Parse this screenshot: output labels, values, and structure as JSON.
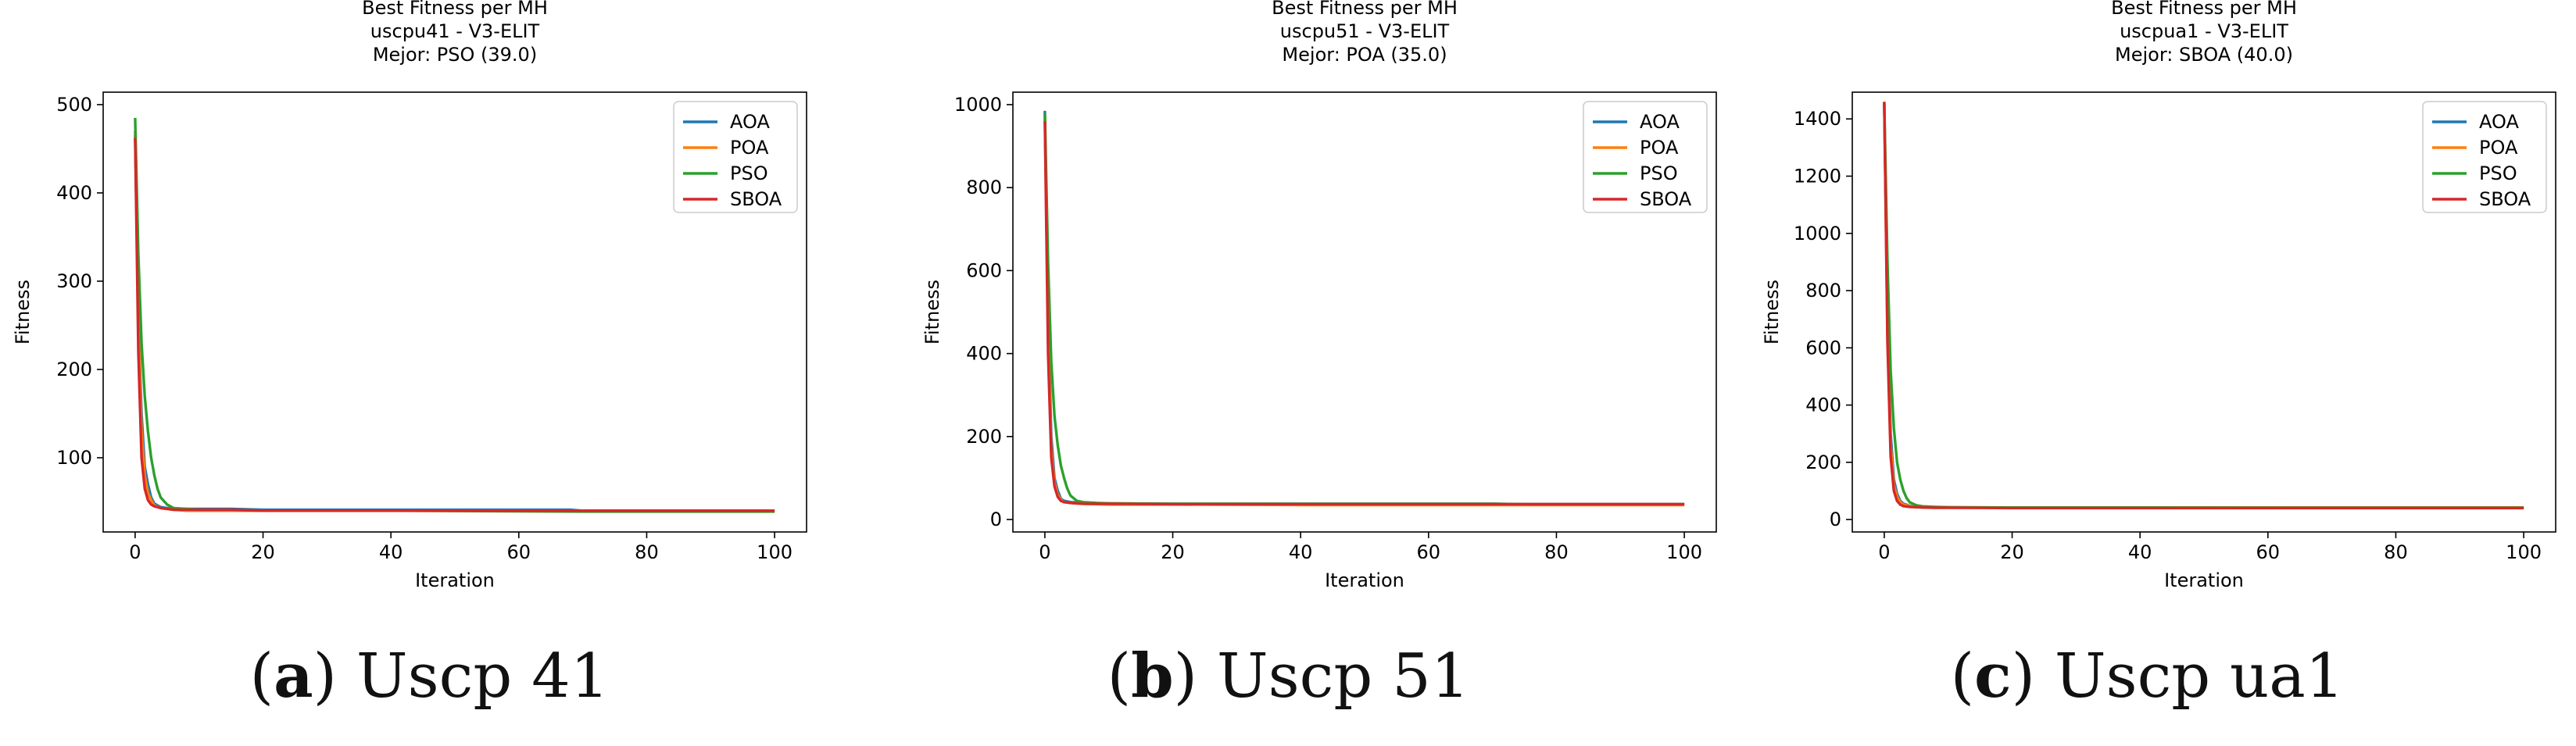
{
  "colors": {
    "AOA": "#1f77b4",
    "POA": "#ff7f0e",
    "PSO": "#2ca02c",
    "SBOA": "#d62728"
  },
  "legend_placement": "top-right",
  "chart_data": [
    {
      "type": "line",
      "title": [
        "Best Fitness per MH",
        "uscpu41 - V3-ELIT",
        "Mejor: PSO (39.0)"
      ],
      "xlabel": "Iteration",
      "ylabel": "Fitness",
      "xlim": [
        0,
        100
      ],
      "ylim": [
        30,
        500
      ],
      "xticks": [
        0,
        20,
        40,
        60,
        80,
        100
      ],
      "yticks": [
        100,
        200,
        300,
        400,
        500
      ],
      "grid": false,
      "series": [
        {
          "name": "AOA",
          "x": [
            0,
            0.5,
            1,
            1.5,
            2,
            2.5,
            3,
            4,
            5,
            6,
            8,
            10,
            15,
            20,
            40,
            68,
            70,
            100
          ],
          "y": [
            465,
            260,
            150,
            90,
            70,
            55,
            48,
            44,
            43,
            42,
            42,
            42,
            42,
            41,
            41,
            41,
            40,
            40
          ]
        },
        {
          "name": "POA",
          "x": [
            0,
            0.5,
            1,
            1.5,
            2,
            2.5,
            3,
            4,
            5,
            6,
            8,
            10,
            15,
            20,
            40,
            70,
            100
          ],
          "y": [
            470,
            250,
            130,
            80,
            60,
            52,
            46,
            43,
            42,
            41,
            40,
            40,
            40,
            40,
            40,
            40,
            40
          ]
        },
        {
          "name": "PSO",
          "x": [
            0,
            0.5,
            1,
            1.5,
            2,
            2.5,
            3,
            3.5,
            4,
            5,
            6,
            8,
            10,
            15,
            20,
            40,
            70,
            100
          ],
          "y": [
            485,
            330,
            230,
            170,
            130,
            100,
            80,
            65,
            55,
            47,
            43,
            42,
            41,
            41,
            40,
            40,
            39,
            39
          ]
        },
        {
          "name": "SBOA",
          "x": [
            0,
            0.5,
            1,
            1.5,
            2,
            2.5,
            3,
            4,
            5,
            6,
            8,
            10,
            15,
            20,
            40,
            70,
            100
          ],
          "y": [
            462,
            220,
            100,
            65,
            52,
            47,
            45,
            43,
            42,
            41,
            41,
            41,
            41,
            40,
            40,
            40,
            40
          ]
        }
      ],
      "caption": {
        "letter": "a",
        "text": "Uscp 41"
      }
    },
    {
      "type": "line",
      "title": [
        "Best Fitness per MH",
        "uscpu51 - V3-ELIT",
        "Mejor: POA (35.0)"
      ],
      "xlabel": "Iteration",
      "ylabel": "Fitness",
      "xlim": [
        0,
        100
      ],
      "ylim": [
        0,
        1000
      ],
      "xticks": [
        0,
        20,
        40,
        60,
        80,
        100
      ],
      "yticks": [
        0,
        200,
        400,
        600,
        800,
        1000
      ],
      "grid": false,
      "series": [
        {
          "name": "AOA",
          "x": [
            0,
            0.5,
            1,
            1.5,
            2,
            2.5,
            3,
            4,
            5,
            6,
            8,
            10,
            20,
            40,
            70,
            75,
            100
          ],
          "y": [
            985,
            500,
            200,
            100,
            70,
            50,
            45,
            42,
            41,
            40,
            39,
            39,
            38,
            38,
            38,
            37,
            37
          ]
        },
        {
          "name": "POA",
          "x": [
            0,
            0.5,
            1,
            1.5,
            2,
            2.5,
            3,
            4,
            5,
            6,
            8,
            10,
            20,
            40,
            70,
            100
          ],
          "y": [
            970,
            450,
            170,
            90,
            60,
            48,
            42,
            40,
            39,
            38,
            37,
            36,
            36,
            35,
            35,
            35
          ]
        },
        {
          "name": "PSO",
          "x": [
            0,
            0.5,
            1,
            1.5,
            2,
            2.5,
            3,
            3.5,
            4,
            5,
            6,
            8,
            10,
            20,
            40,
            70,
            75,
            100
          ],
          "y": [
            980,
            620,
            380,
            250,
            180,
            130,
            100,
            75,
            58,
            45,
            42,
            40,
            39,
            38,
            38,
            38,
            37,
            37
          ]
        },
        {
          "name": "SBOA",
          "x": [
            0,
            0.5,
            1,
            1.5,
            2,
            2.5,
            3,
            4,
            5,
            6,
            8,
            10,
            20,
            40,
            70,
            100
          ],
          "y": [
            960,
            400,
            150,
            80,
            55,
            45,
            42,
            40,
            39,
            38,
            38,
            38,
            37,
            37,
            37,
            37
          ]
        }
      ],
      "caption": {
        "letter": "b",
        "text": "Uscp 51"
      }
    },
    {
      "type": "line",
      "title": [
        "Best Fitness per MH",
        "uscpua1 - V3-ELIT",
        "Mejor: SBOA (40.0)"
      ],
      "xlabel": "Iteration",
      "ylabel": "Fitness",
      "xlim": [
        0,
        100
      ],
      "ylim": [
        0,
        1450
      ],
      "xticks": [
        0,
        20,
        40,
        60,
        80,
        100
      ],
      "yticks": [
        0,
        200,
        400,
        600,
        800,
        1000,
        1200,
        1400
      ],
      "grid": false,
      "series": [
        {
          "name": "AOA",
          "x": [
            0,
            0.5,
            1,
            1.5,
            2,
            2.5,
            3,
            4,
            5,
            6,
            8,
            10,
            20,
            40,
            70,
            100
          ],
          "y": [
            1460,
            700,
            300,
            140,
            90,
            65,
            55,
            48,
            45,
            44,
            43,
            42,
            42,
            42,
            42,
            42
          ]
        },
        {
          "name": "POA",
          "x": [
            0,
            0.5,
            1,
            1.5,
            2,
            2.5,
            3,
            4,
            5,
            6,
            8,
            10,
            20,
            40,
            70,
            100
          ],
          "y": [
            1450,
            650,
            260,
            120,
            80,
            60,
            52,
            47,
            45,
            44,
            43,
            42,
            42,
            42,
            42,
            42
          ]
        },
        {
          "name": "PSO",
          "x": [
            0,
            0.5,
            1,
            1.5,
            2,
            2.5,
            3,
            3.5,
            4,
            5,
            6,
            8,
            10,
            20,
            40,
            70,
            100
          ],
          "y": [
            1455,
            900,
            520,
            320,
            200,
            140,
            100,
            75,
            60,
            50,
            46,
            44,
            43,
            42,
            42,
            41,
            41
          ]
        },
        {
          "name": "SBOA",
          "x": [
            0,
            0.5,
            1,
            1.5,
            2,
            2.5,
            3,
            4,
            5,
            6,
            8,
            10,
            20,
            40,
            70,
            100
          ],
          "y": [
            1460,
            620,
            220,
            100,
            65,
            52,
            47,
            44,
            43,
            42,
            41,
            41,
            40,
            40,
            40,
            40
          ]
        }
      ],
      "caption": {
        "letter": "c",
        "text": "Uscp ua1"
      }
    }
  ]
}
